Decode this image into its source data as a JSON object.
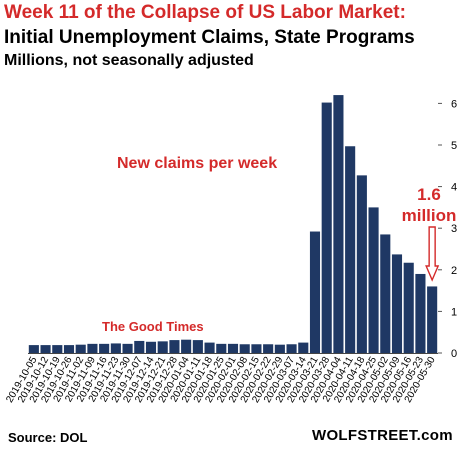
{
  "header": {
    "title": "Week 11 of the Collapse of US Labor Market:",
    "subtitle": "Initial Unemployment Claims, State Programs",
    "units": "Millions, not seasonally adjusted"
  },
  "footer": {
    "source": "Source: DOL",
    "brand": "WOLFSTREET.com"
  },
  "colors": {
    "bar": "#1f3864",
    "title": "#d42a2a",
    "annotation": "#d42a2a",
    "axis": "#000000"
  },
  "chart_data": {
    "type": "bar",
    "categories": [
      "2019-10-05",
      "2019-10-12",
      "2019-10-19",
      "2019-10-26",
      "2019-11-02",
      "2019-11-09",
      "2019-11-16",
      "2019-11-23",
      "2019-11-30",
      "2019-12-07",
      "2019-12-14",
      "2019-12-21",
      "2019-12-28",
      "2020-01-04",
      "2020-01-11",
      "2020-01-18",
      "2020-01-25",
      "2020-02-01",
      "2020-02-08",
      "2020-02-15",
      "2020-02-22",
      "2020-02-29",
      "2020-03-07",
      "2020-03-14",
      "2020-03-21",
      "2020-03-28",
      "2020-04-04",
      "2020-04-11",
      "2020-04-18",
      "2020-04-25",
      "2020-05-02",
      "2020-05-09",
      "2020-05-16",
      "2020-05-23",
      "2020-05-30"
    ],
    "values": [
      0.19,
      0.19,
      0.19,
      0.19,
      0.2,
      0.22,
      0.22,
      0.23,
      0.22,
      0.29,
      0.27,
      0.28,
      0.31,
      0.32,
      0.31,
      0.25,
      0.22,
      0.22,
      0.21,
      0.21,
      0.21,
      0.2,
      0.21,
      0.25,
      2.92,
      6.02,
      6.2,
      4.97,
      4.27,
      3.5,
      2.85,
      2.37,
      2.17,
      1.9,
      1.6
    ],
    "xlabel": "",
    "ylabel": "",
    "ylim": [
      0,
      6.4
    ],
    "yticks": [
      "0",
      "1",
      "2",
      "3",
      "4",
      "5",
      "6"
    ],
    "grid": false,
    "legend": "none",
    "annotations": {
      "new_claims": "New claims per week",
      "good_times": "The Good Times",
      "latest_value": "1.6",
      "latest_unit": "million"
    }
  }
}
